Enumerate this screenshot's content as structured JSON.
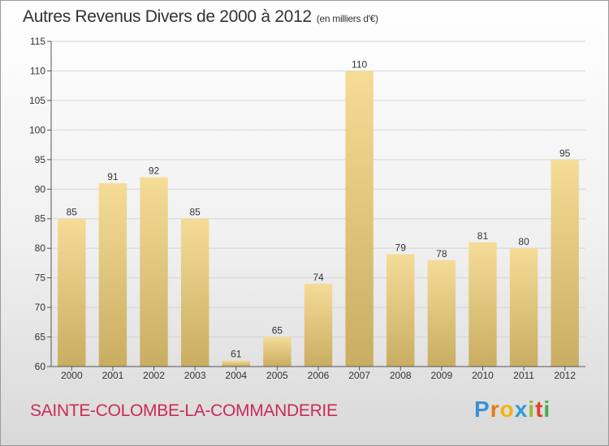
{
  "header": {
    "title": "Autres Revenus Divers de 2000 à 2012",
    "subtitle": "(en milliers d'€)"
  },
  "footer": {
    "location": "SAINTE-COLOMBE-LA-COMMANDERIE",
    "logo_text": "Proxiti"
  },
  "chart_data": {
    "type": "bar",
    "categories": [
      "2000",
      "2001",
      "2002",
      "2003",
      "2004",
      "2005",
      "2006",
      "2007",
      "2008",
      "2009",
      "2010",
      "2011",
      "2012"
    ],
    "values": [
      85,
      91,
      92,
      85,
      61,
      65,
      74,
      110,
      79,
      78,
      81,
      80,
      95
    ],
    "title": "Autres Revenus Divers de 2000 à 2012",
    "ylim": [
      60,
      115
    ],
    "yticks": [
      60,
      65,
      70,
      75,
      80,
      85,
      90,
      95,
      100,
      105,
      110,
      115
    ],
    "grid": true,
    "colors": {
      "bar_light": "#f5dc97",
      "bar_dark": "#c9ad62",
      "grid": "#d6d6d6",
      "axis": "#555555"
    }
  }
}
